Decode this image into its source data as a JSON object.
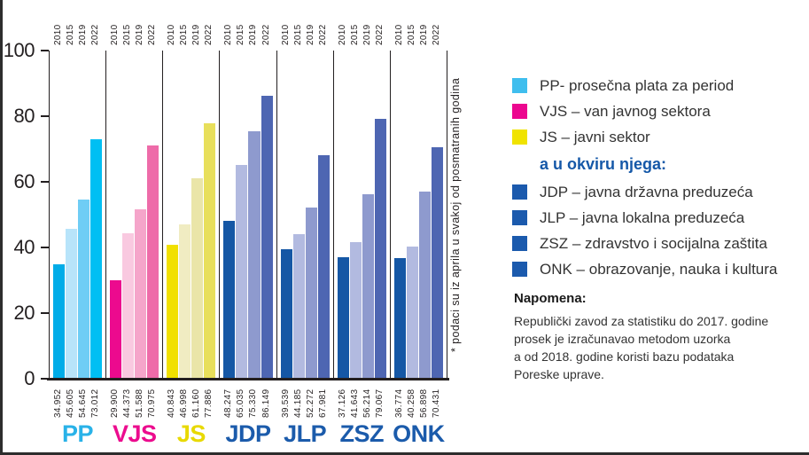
{
  "chart_data": {
    "type": "bar",
    "title": "",
    "xlabel": "",
    "ylabel": "",
    "ylim": [
      0,
      100
    ],
    "yticks": [
      0,
      20,
      40,
      60,
      80,
      100
    ],
    "grid": false,
    "years": [
      "2010",
      "2015",
      "2019",
      "2022"
    ],
    "groups": [
      {
        "label": "PP",
        "label_color": "#29b2e8",
        "colors": [
          "#00ace8",
          "#b8e4fa",
          "#6fcdf5",
          "#00bff3"
        ],
        "values": [
          34.952,
          45.605,
          54.645,
          73.012
        ],
        "value_labels": [
          "34.952",
          "45.605",
          "54.645",
          "73.012"
        ]
      },
      {
        "label": "VJS",
        "label_color": "#ec0c8e",
        "colors": [
          "#ec0a8e",
          "#f9c9e0",
          "#f5a5ca",
          "#ee6ba9"
        ],
        "values": [
          29.9,
          44.373,
          51.588,
          70.975
        ],
        "value_labels": [
          "29.900",
          "44.373",
          "51.588",
          "70.975"
        ]
      },
      {
        "label": "JS",
        "label_color": "#e8d900",
        "colors": [
          "#f1e000",
          "#f0ecc2",
          "#eae5a8",
          "#e8df5b"
        ],
        "values": [
          40.843,
          46.998,
          61.16,
          77.886
        ],
        "value_labels": [
          "40.843",
          "46.998",
          "61.160",
          "77.886"
        ]
      },
      {
        "label": "JDP",
        "label_color": "#1b5bab",
        "colors": [
          "#1557a5",
          "#b2bae0",
          "#8e9ace",
          "#4e66b2"
        ],
        "values": [
          48.247,
          65.035,
          75.33,
          86.149
        ],
        "value_labels": [
          "48.247",
          "65.035",
          "75.330",
          "86.149"
        ]
      },
      {
        "label": "JLP",
        "label_color": "#1b5bab",
        "colors": [
          "#1557a5",
          "#b2bae0",
          "#8e9ace",
          "#4e66b2"
        ],
        "values": [
          39.539,
          44.185,
          52.272,
          67.981
        ],
        "value_labels": [
          "39.539",
          "44.185",
          "52.272",
          "67.981"
        ]
      },
      {
        "label": "ZSZ",
        "label_color": "#1b5bab",
        "colors": [
          "#1557a5",
          "#b2bae0",
          "#8e9ace",
          "#4e66b2"
        ],
        "values": [
          37.126,
          41.643,
          56.214,
          79.067
        ],
        "value_labels": [
          "37.126",
          "41.643",
          "56.214",
          "79.067"
        ]
      },
      {
        "label": "ONK",
        "label_color": "#1b5bab",
        "colors": [
          "#1557a5",
          "#b2bae0",
          "#8e9ace",
          "#4e66b2"
        ],
        "values": [
          36.774,
          40.258,
          56.898,
          70.431
        ],
        "value_labels": [
          "36.774",
          "40.258",
          "56.898",
          "70.431"
        ]
      }
    ],
    "footnote_vertical": "* podaci su iz aprila u svakoj od posmatranih godina"
  },
  "legend": {
    "items": [
      {
        "label": "PP- prosečna plata za period",
        "color": "#3fbeee"
      },
      {
        "label": "VJS – van javnog sektora",
        "color": "#ec078f"
      },
      {
        "label": "JS – javni sektor",
        "color": "#f0e300"
      },
      {
        "label": "JDP – javna državna preduzeća",
        "color": "#1b5aad"
      },
      {
        "label": "JLP – javna lokalna preduzeća",
        "color": "#1b5aad"
      },
      {
        "label": "ZSZ – zdravstvo i socijalna zaštita",
        "color": "#1b5aad"
      },
      {
        "label": "ONK – obrazovanje, nauka i kultura",
        "color": "#1b5aad"
      }
    ],
    "subheader": "a u okviru njega:",
    "subheader_after_index": 2,
    "subheader_color": "#1558a8"
  },
  "note": {
    "heading": "Napomena:",
    "lines": [
      "Republički zavod za statistiku do 2017. godine",
      "prosek je izračunavao metodom uzorka",
      "a od 2018. godine koristi bazu podataka",
      "Poreske uprave."
    ]
  }
}
